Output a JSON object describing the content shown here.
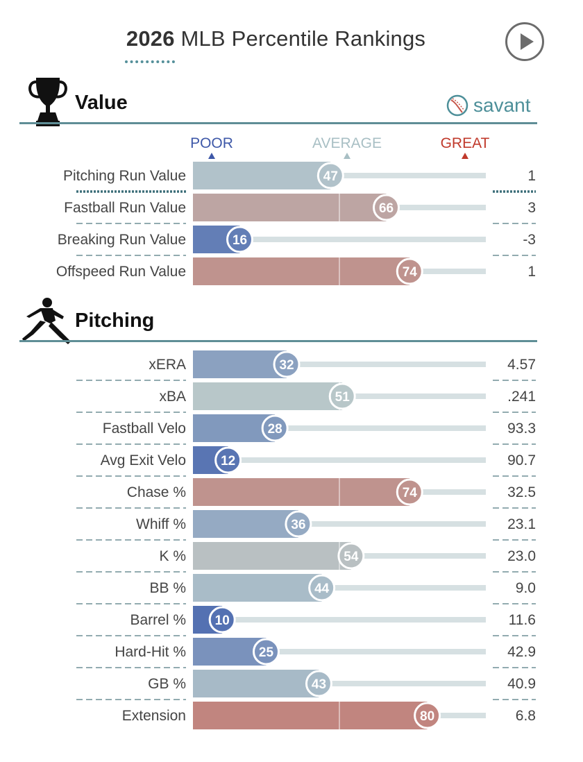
{
  "header": {
    "year": "2026",
    "title_rest": "MLB Percentile Rankings",
    "play_button_icon": "play-icon"
  },
  "savant": {
    "label": "savant",
    "icon": "baseball-icon"
  },
  "legend": {
    "poor": "POOR",
    "average": "AVERAGE",
    "great": "GREAT"
  },
  "colors": {
    "poor": "#3b5bab",
    "average": "#b8c9cc",
    "great": "#c7584b",
    "track": "#d6e0e2",
    "accent": "#5f8e96"
  },
  "chart_data": {
    "type": "bar",
    "x_range": [
      0,
      100
    ],
    "sections": [
      {
        "name": "Value",
        "icon": "trophy-icon",
        "rows": [
          {
            "label": "Pitching Run Value",
            "percentile": 47,
            "value": "1"
          },
          {
            "label": "Fastball Run Value",
            "percentile": 66,
            "value": "3"
          },
          {
            "label": "Breaking Run Value",
            "percentile": 16,
            "value": "-3"
          },
          {
            "label": "Offspeed Run Value",
            "percentile": 74,
            "value": "1"
          }
        ]
      },
      {
        "name": "Pitching",
        "icon": "pitcher-icon",
        "rows": [
          {
            "label": "xERA",
            "percentile": 32,
            "value": "4.57"
          },
          {
            "label": "xBA",
            "percentile": 51,
            "value": ".241"
          },
          {
            "label": "Fastball Velo",
            "percentile": 28,
            "value": "93.3"
          },
          {
            "label": "Avg Exit Velo",
            "percentile": 12,
            "value": "90.7"
          },
          {
            "label": "Chase %",
            "percentile": 74,
            "value": "32.5"
          },
          {
            "label": "Whiff %",
            "percentile": 36,
            "value": "23.1"
          },
          {
            "label": "K %",
            "percentile": 54,
            "value": "23.0"
          },
          {
            "label": "BB %",
            "percentile": 44,
            "value": "9.0"
          },
          {
            "label": "Barrel %",
            "percentile": 10,
            "value": "11.6"
          },
          {
            "label": "Hard-Hit %",
            "percentile": 25,
            "value": "42.9"
          },
          {
            "label": "GB %",
            "percentile": 43,
            "value": "40.9"
          },
          {
            "label": "Extension",
            "percentile": 80,
            "value": "6.8"
          }
        ]
      }
    ]
  }
}
